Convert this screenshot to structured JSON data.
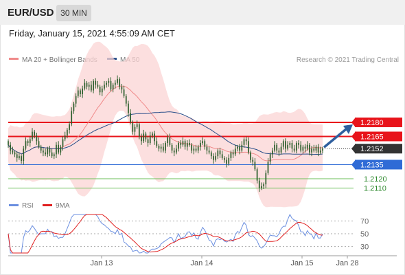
{
  "header": {
    "symbol": "EUR/USD",
    "timeframe": "30 MIN"
  },
  "datetime": "Friday, January 15, 2021 4:55:09 AM CET",
  "credit": "Research © 2021 Trading Central",
  "legend": {
    "ma20_label": "MA 20 + Bollinger Bands",
    "ma50_label": "MA 50",
    "rsi_label": "RSI",
    "rsi_ma_label": "9MA"
  },
  "colors": {
    "candle": "#2d5f2d",
    "ma20": "#f08a8a",
    "bollinger_fill": "#fbd4d4",
    "ma50": "#2a4f8a",
    "resistance": "#e8141b",
    "support": "#2f6bd6",
    "target": "#6bbf59",
    "last_price": "#333333",
    "arrow": "#2f5f9e",
    "rsi_line": "#6b8fe0",
    "rsi_ma_line": "#e02020"
  },
  "chart_data": [
    {
      "type": "candlestick",
      "ylim": [
        1.2098,
        1.224
      ],
      "x_ticks": [
        "Jan 13",
        "Jan 14",
        "Jan 15",
        "Jan 28"
      ],
      "levels": [
        {
          "label": "1.2180",
          "value": 1.218,
          "kind": "resistance"
        },
        {
          "label": "1.2165",
          "value": 1.2165,
          "kind": "resistance"
        },
        {
          "label": "1.2152",
          "value": 1.2152,
          "kind": "last"
        },
        {
          "label": "1.2135",
          "value": 1.2135,
          "kind": "support"
        },
        {
          "label": "1.2120",
          "value": 1.212,
          "kind": "target"
        },
        {
          "label": "1.2110",
          "value": 1.211,
          "kind": "target"
        }
      ],
      "series": [
        {
          "name": "EUR/USD",
          "kind": "price",
          "close": [
            1.2156,
            1.215,
            1.2148,
            1.2146,
            1.2142,
            1.2144,
            1.2139,
            1.2152,
            1.216,
            1.2158,
            1.2162,
            1.217,
            1.2166,
            1.216,
            1.2154,
            1.215,
            1.2148,
            1.2146,
            1.2152,
            1.2148,
            1.2144,
            1.2146,
            1.2156,
            1.2148,
            1.2154,
            1.2162,
            1.2166,
            1.2172,
            1.2178,
            1.2192,
            1.22,
            1.2208,
            1.2214,
            1.221,
            1.2216,
            1.2222,
            1.2218,
            1.222,
            1.2214,
            1.2224,
            1.222,
            1.2218,
            1.2212,
            1.2216,
            1.222,
            1.2222,
            1.2224,
            1.2215,
            1.222,
            1.2222,
            1.2226,
            1.2218,
            1.2215,
            1.2208,
            1.22,
            1.219,
            1.218,
            1.217,
            1.2175,
            1.2178,
            1.2165,
            1.216,
            1.2168,
            1.2162,
            1.2158,
            1.2166,
            1.2168,
            1.216,
            1.2155,
            1.2152,
            1.2154,
            1.215,
            1.2158,
            1.2164,
            1.2156,
            1.215,
            1.2148,
            1.2152,
            1.2158,
            1.2156,
            1.216,
            1.2154,
            1.2158,
            1.2156,
            1.215,
            1.2152,
            1.215,
            1.2154,
            1.2158,
            1.216,
            1.2154,
            1.215,
            1.2148,
            1.2144,
            1.214,
            1.2144,
            1.215,
            1.2146,
            1.2142,
            1.214,
            1.2136,
            1.2142,
            1.2148,
            1.2146,
            1.2152,
            1.2154,
            1.215,
            1.2156,
            1.2162,
            1.216,
            1.2148,
            1.214,
            1.2138,
            1.213,
            1.2118,
            1.211,
            1.2112,
            1.2114,
            1.2126,
            1.2138,
            1.2146,
            1.215,
            1.2156,
            1.215,
            1.2148,
            1.2154,
            1.216,
            1.2152,
            1.2156,
            1.2158,
            1.2152,
            1.215,
            1.2158,
            1.2156,
            1.215,
            1.2154,
            1.2152,
            1.2156,
            1.2148,
            1.2152,
            1.215,
            1.2154,
            1.2148,
            1.215,
            1.2152
          ]
        },
        {
          "name": "MA 20",
          "kind": "ma20"
        },
        {
          "name": "MA 50",
          "kind": "ma50"
        }
      ]
    },
    {
      "type": "line",
      "ylim": [
        20,
        80
      ],
      "y_ticks": [
        70,
        50,
        30
      ],
      "series": [
        {
          "name": "RSI",
          "kind": "rsi"
        },
        {
          "name": "9MA",
          "kind": "rsi_ma"
        }
      ]
    }
  ]
}
